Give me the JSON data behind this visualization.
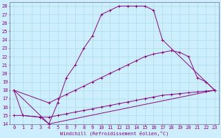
{
  "xlabel": "Windchill (Refroidissement éolien,°C)",
  "background_color": "#cceeff",
  "grid_color": "#aadddd",
  "line_color": "#880088",
  "xlim": [
    -0.5,
    23.5
  ],
  "ylim": [
    14,
    28.5
  ],
  "yticks": [
    14,
    15,
    16,
    17,
    18,
    19,
    20,
    21,
    22,
    23,
    24,
    25,
    26,
    27,
    28
  ],
  "xticks": [
    0,
    1,
    2,
    3,
    4,
    5,
    6,
    7,
    8,
    9,
    10,
    11,
    12,
    13,
    14,
    15,
    16,
    17,
    18,
    19,
    20,
    21,
    22,
    23
  ],
  "lines": [
    {
      "x": [
        0,
        1,
        3,
        4,
        5,
        6,
        7,
        8,
        9,
        10,
        11,
        12,
        13,
        14,
        15,
        16,
        17,
        23
      ],
      "y": [
        18,
        15,
        14.8,
        14,
        16.5,
        19.5,
        21.0,
        23.0,
        24.5,
        27.0,
        27.5,
        28.0,
        28.0,
        28.0,
        28.0,
        27.5,
        24.0,
        18.0
      ]
    },
    {
      "x": [
        0,
        4,
        5,
        6,
        7,
        8,
        9,
        10,
        11,
        12,
        13,
        14,
        15,
        16,
        17,
        18,
        19,
        20,
        21,
        22,
        23
      ],
      "y": [
        18,
        16.5,
        17.0,
        17.5,
        18.0,
        18.5,
        19.0,
        19.5,
        20.0,
        20.5,
        21.0,
        21.5,
        22.0,
        22.3,
        22.5,
        22.7,
        22.5,
        22.0,
        19.5,
        19.0,
        18.0
      ]
    },
    {
      "x": [
        0,
        1,
        3,
        4,
        5,
        6,
        7,
        8,
        9,
        10,
        11,
        12,
        13,
        14,
        15,
        16,
        17,
        18,
        19,
        20,
        21,
        22,
        23
      ],
      "y": [
        15,
        15,
        14.8,
        14.8,
        15.0,
        15.2,
        15.4,
        15.6,
        15.8,
        16.0,
        16.2,
        16.4,
        16.6,
        16.8,
        17.0,
        17.2,
        17.4,
        17.5,
        17.6,
        17.7,
        17.8,
        17.9,
        18.0
      ]
    },
    {
      "comment": "straight line bottom: 0->18, 4->14, 23->18",
      "x": [
        0,
        4,
        23
      ],
      "y": [
        18,
        14,
        18
      ]
    }
  ]
}
